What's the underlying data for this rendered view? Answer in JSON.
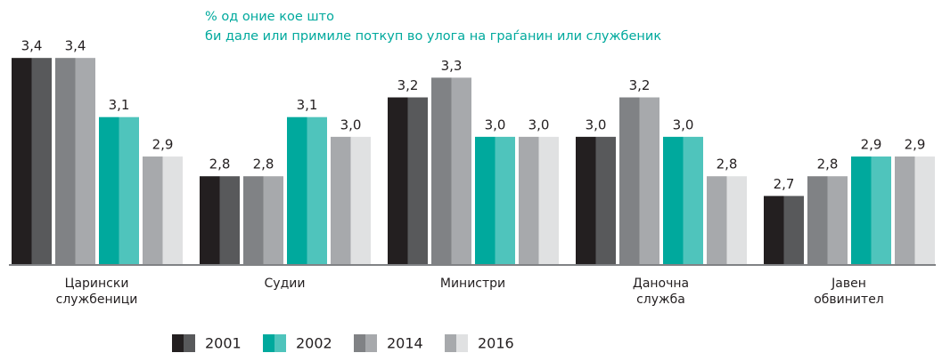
{
  "chart_data": {
    "type": "bar",
    "title": "% од оние кое што\nби дале или примиле поткуп во улога на граѓанин или службеник",
    "categories": [
      "Царински\nслужбеници",
      "Судии",
      "Министри",
      "Даночна\nслужба",
      "Јавен\nобвинител"
    ],
    "series": [
      {
        "name": "2001",
        "colors": [
          "#231f20",
          "#58595b"
        ],
        "values": [
          3.4,
          2.8,
          3.2,
          3.0,
          2.7
        ],
        "value_labels": [
          "3,4",
          "2,8",
          "3,2",
          "3,0",
          "2,7"
        ]
      },
      {
        "name": "2002",
        "colors": [
          "#00a99d",
          "#4fc4bc"
        ],
        "values": [
          3.1,
          3.1,
          3.0,
          3.0,
          2.9
        ],
        "value_labels": [
          "3,1",
          "3,1",
          "3,0",
          "3,0",
          "2,9"
        ]
      },
      {
        "name": "2014",
        "colors": [
          "#808285",
          "#a7a9ac"
        ],
        "values": [
          3.4,
          2.8,
          3.3,
          3.2,
          2.8
        ],
        "value_labels": [
          "3,4",
          "2,8",
          "3,3",
          "3,2",
          "2,8"
        ]
      },
      {
        "name": "2016",
        "colors": [
          "#a7a9ac",
          "#e0e1e2"
        ],
        "values": [
          2.9,
          3.0,
          3.0,
          2.8,
          2.9
        ],
        "value_labels": [
          "2,9",
          "3,0",
          "3,0",
          "2,8",
          "2,9"
        ]
      }
    ],
    "ylim": [
      2.35,
      3.5
    ]
  }
}
